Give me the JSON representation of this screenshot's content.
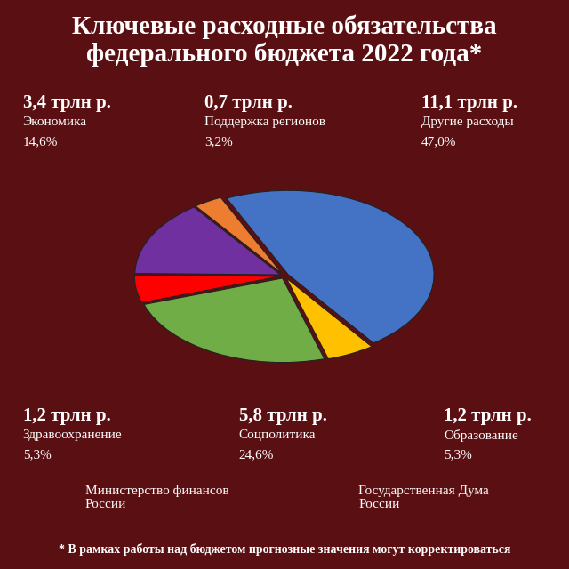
{
  "chart_data": {
    "type": "pie",
    "title": "Ключевые расходные обязательства федерального бюджета 2022 года*",
    "categories": [
      "Другие расходы",
      "Образование",
      "Соцполитика",
      "Здравоохранение",
      "Экономика",
      "Поддержка регионов"
    ],
    "values": [
      47.0,
      5.3,
      24.6,
      5.3,
      14.6,
      3.2
    ],
    "value_labels": [
      "47,0%",
      "5,3%",
      "24,6%",
      "5,3%",
      "14,6%",
      "3,2%"
    ],
    "amounts": [
      11.1,
      1.2,
      5.8,
      1.2,
      3.4,
      0.7
    ],
    "amount_labels": [
      "11,1 трлн р.",
      "1,2 трлн р.",
      "5,8 трлн р.",
      "1,2 трлн р.",
      "3,4 трлн р.",
      "0,7 трлн р."
    ],
    "colors": [
      "#4472c4",
      "#ffc000",
      "#70ad47",
      "#ff0000",
      "#7030a0",
      "#ed7d31"
    ],
    "data_labels": true,
    "sources": [
      "Министерство финансов России",
      "Государственная Дума России"
    ],
    "footnote": "* В рамках работы над бюджетом прогнозные значения могут корректироваться"
  }
}
